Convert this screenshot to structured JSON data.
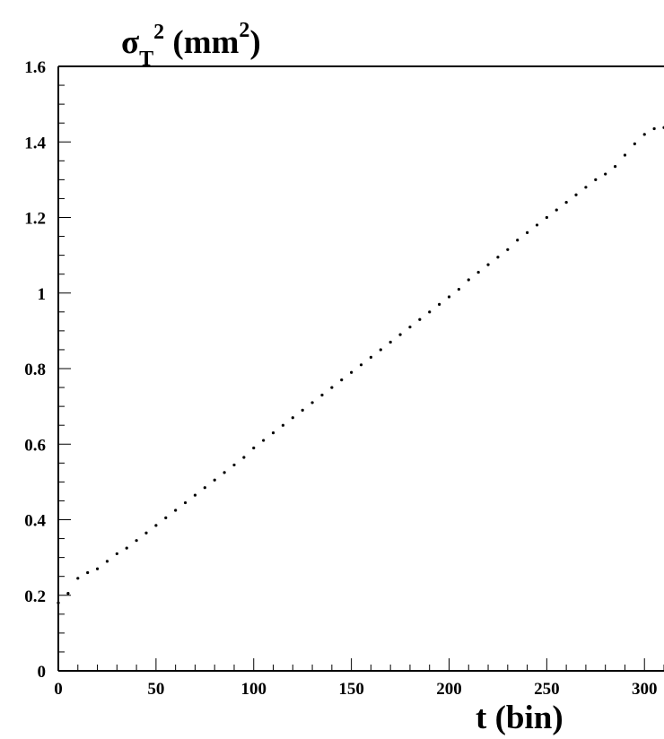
{
  "chart_data": {
    "type": "scatter",
    "title": "",
    "ylabel": {
      "symbol": "σ",
      "sub": "T",
      "sup": "2",
      "unit_pre": " (mm",
      "unit_sup": "2",
      "unit_post": ")"
    },
    "xlabel": "t (bin)",
    "xlim": [
      0,
      310
    ],
    "ylim": [
      0,
      1.6
    ],
    "x_ticks": [
      {
        "value": 0,
        "label": "0"
      },
      {
        "value": 50,
        "label": "50"
      },
      {
        "value": 100,
        "label": "100"
      },
      {
        "value": 150,
        "label": "150"
      },
      {
        "value": 200,
        "label": "200"
      },
      {
        "value": 250,
        "label": "250"
      },
      {
        "value": 300,
        "label": "300"
      }
    ],
    "y_ticks": [
      {
        "value": 0,
        "label": "0"
      },
      {
        "value": 0.2,
        "label": "0.2"
      },
      {
        "value": 0.4,
        "label": "0.4"
      },
      {
        "value": 0.6,
        "label": "0.6"
      },
      {
        "value": 0.8,
        "label": "0.8"
      },
      {
        "value": 1.0,
        "label": "1"
      },
      {
        "value": 1.2,
        "label": "1.2"
      },
      {
        "value": 1.4,
        "label": "1.4"
      },
      {
        "value": 1.6,
        "label": "1.6"
      }
    ],
    "grid": false,
    "marker_color": "#000000",
    "x": [
      0,
      5,
      10,
      15,
      20,
      25,
      30,
      35,
      40,
      45,
      50,
      55,
      60,
      65,
      70,
      75,
      80,
      85,
      90,
      95,
      100,
      105,
      110,
      115,
      120,
      125,
      130,
      135,
      140,
      145,
      150,
      155,
      160,
      165,
      170,
      175,
      180,
      185,
      190,
      195,
      200,
      205,
      210,
      215,
      220,
      225,
      230,
      235,
      240,
      245,
      250,
      255,
      260,
      265,
      270,
      275,
      280,
      285,
      290,
      295,
      300,
      305,
      310
    ],
    "y": [
      0.18,
      0.205,
      0.245,
      0.26,
      0.27,
      0.29,
      0.31,
      0.325,
      0.345,
      0.365,
      0.385,
      0.405,
      0.425,
      0.445,
      0.465,
      0.485,
      0.505,
      0.525,
      0.545,
      0.565,
      0.59,
      0.61,
      0.63,
      0.65,
      0.67,
      0.69,
      0.71,
      0.73,
      0.75,
      0.77,
      0.79,
      0.81,
      0.83,
      0.85,
      0.87,
      0.89,
      0.91,
      0.93,
      0.95,
      0.97,
      0.99,
      1.01,
      1.035,
      1.055,
      1.075,
      1.095,
      1.115,
      1.14,
      1.16,
      1.18,
      1.2,
      1.22,
      1.24,
      1.26,
      1.28,
      1.3,
      1.315,
      1.335,
      1.365,
      1.395,
      1.42,
      1.435,
      1.438
    ]
  }
}
